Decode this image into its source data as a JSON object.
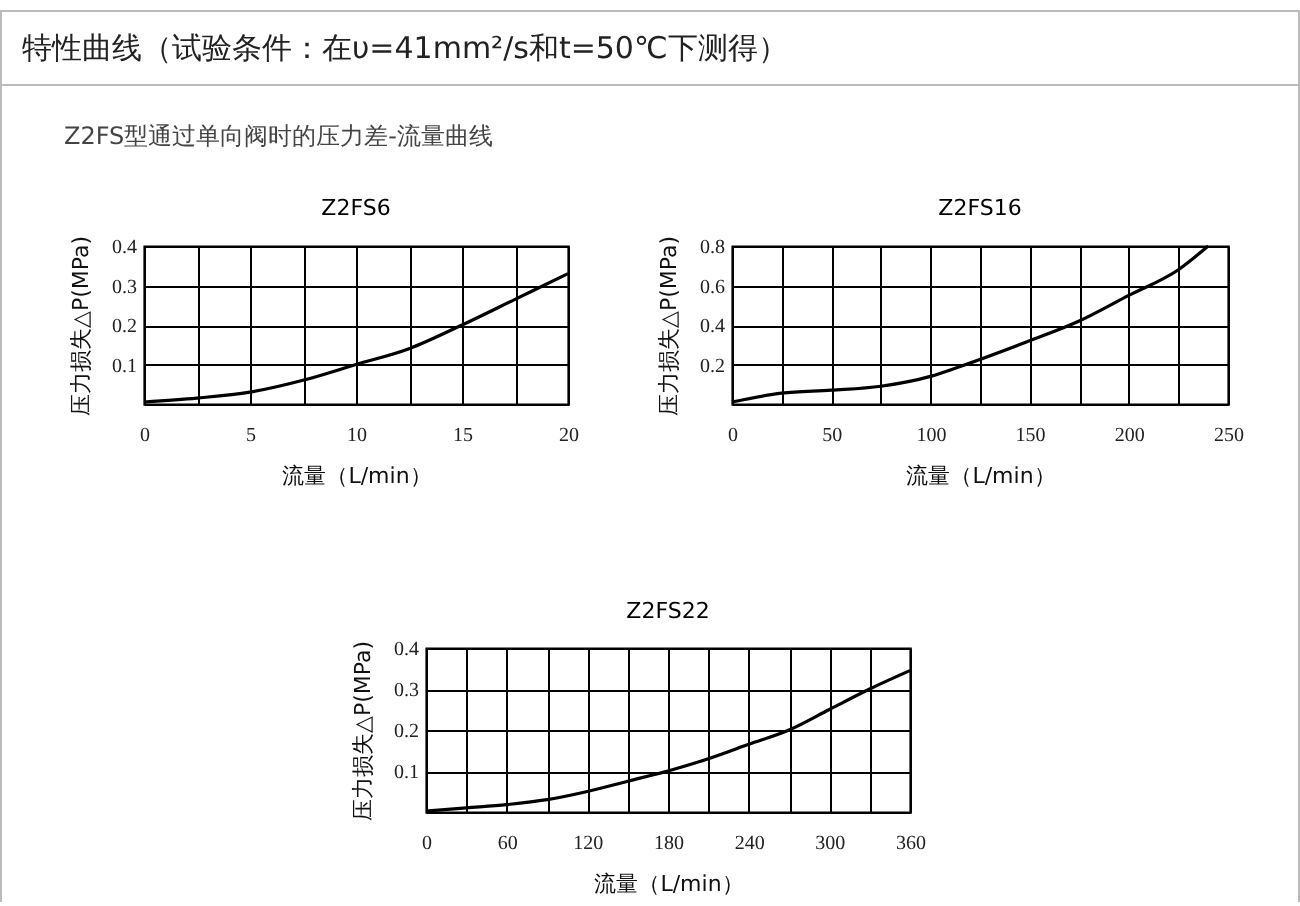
{
  "chart_data": [
    {
      "type": "line",
      "title": "Z2FS6",
      "xlabel": "流量（L/min）",
      "ylabel": "压力损失△P(MPa)",
      "annotations": [
        "特性曲线（试验条件：在υ=41mm²/s和t=50℃下测得）",
        "Z2FS型通过单向阀时的压力差-流量曲线"
      ],
      "grid": true,
      "xlim": [
        0,
        20
      ],
      "xticks": [
        0,
        {
          "value": 2.5,
          "label": null
        },
        5,
        {
          "value": 7.5,
          "label": null
        },
        10,
        {
          "value": 12.5,
          "label": null
        },
        15,
        {
          "value": 17.5,
          "label": null
        },
        20
      ],
      "ylim": [
        0,
        0.4
      ],
      "yticks": [
        0.1,
        0.2,
        0.3,
        0.4
      ],
      "series": [
        {
          "color": "#000000",
          "x": [
            0,
            2.5,
            5,
            7.5,
            10,
            12.5,
            15,
            17.5,
            20
          ],
          "values": [
            0.005,
            0.015,
            0.03,
            0.06,
            0.1,
            0.14,
            0.2,
            0.265,
            0.33
          ]
        }
      ]
    },
    {
      "type": "line",
      "title": "Z2FS16",
      "xlabel": "流量（L/min）",
      "ylabel": "压力损失△P(MPa)",
      "grid": true,
      "xlim": [
        0,
        250
      ],
      "xticks": [
        0,
        {
          "value": 25,
          "label": null
        },
        50,
        {
          "value": 75,
          "label": null
        },
        100,
        {
          "value": 125,
          "label": null
        },
        150,
        {
          "value": 175,
          "label": null
        },
        200,
        {
          "value": 225,
          "label": null
        },
        250
      ],
      "ylim": [
        0,
        0.8
      ],
      "yticks": [
        0.2,
        0.4,
        0.6,
        0.8
      ],
      "series": [
        {
          "color": "#000000",
          "x": [
            0,
            25,
            50,
            75,
            100,
            115,
            150,
            175,
            200,
            225,
            240
          ],
          "values": [
            0.01,
            0.055,
            0.07,
            0.09,
            0.14,
            0.19,
            0.32,
            0.42,
            0.55,
            0.68,
            0.8
          ]
        }
      ]
    },
    {
      "type": "line",
      "title": "Z2FS22",
      "xlabel": "流量（L/min）",
      "ylabel": "压力损失△P(MPa)",
      "grid": true,
      "xlim": [
        0,
        360
      ],
      "xticks": [
        0,
        {
          "value": 30,
          "label": null
        },
        60,
        {
          "value": 90,
          "label": null
        },
        120,
        {
          "value": 150,
          "label": null
        },
        180,
        {
          "value": 210,
          "label": null
        },
        240,
        {
          "value": 270,
          "label": null
        },
        300,
        {
          "value": 330,
          "label": null
        },
        360
      ],
      "ylim": [
        0,
        0.4
      ],
      "yticks": [
        0.1,
        0.2,
        0.3,
        0.4
      ],
      "series": [
        {
          "color": "#000000",
          "x": [
            0,
            30,
            60,
            90,
            120,
            150,
            180,
            210,
            240,
            270,
            300,
            330,
            360
          ],
          "values": [
            0.002,
            0.01,
            0.018,
            0.03,
            0.05,
            0.075,
            0.1,
            0.13,
            0.165,
            0.2,
            0.25,
            0.3,
            0.345
          ]
        }
      ]
    }
  ]
}
